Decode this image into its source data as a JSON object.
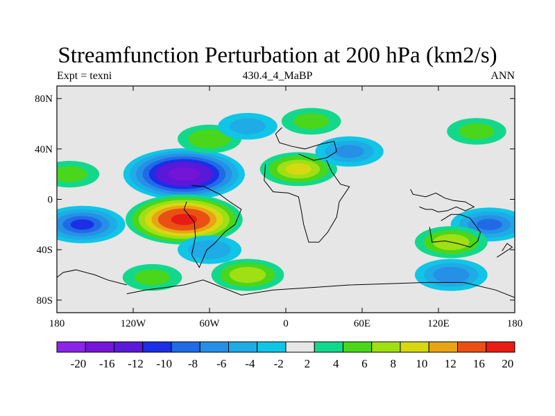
{
  "chart_data": {
    "type": "contour-map",
    "title": "Streamfunction Perturbation at 200 hPa (km2/s)",
    "left_label": "Expt = texni",
    "center_label": "430.4_4_MaBP",
    "right_label": "ANN",
    "x_ticks": [
      "180",
      "120W",
      "60W",
      "0",
      "60E",
      "120E",
      "180"
    ],
    "x_tick_values": [
      -180,
      -120,
      -60,
      0,
      60,
      120,
      180
    ],
    "y_ticks": [
      "80N",
      "40N",
      "0",
      "40S",
      "80S"
    ],
    "y_tick_values": [
      80,
      40,
      0,
      -40,
      -80
    ],
    "xlim": [
      -180,
      180
    ],
    "ylim": [
      -90,
      90
    ],
    "colorbar_labels": [
      "-20",
      "-16",
      "-12",
      "-10",
      "-8",
      "-6",
      "-4",
      "-2",
      "2",
      "4",
      "6",
      "8",
      "10",
      "12",
      "16",
      "20"
    ],
    "colorbar_colors": [
      "#8a25e8",
      "#7414d6",
      "#5a18d8",
      "#1c2ee6",
      "#1f6be6",
      "#2690e6",
      "#1fabe6",
      "#10c5e6",
      "#e6e6e6",
      "#13d88c",
      "#4ad61a",
      "#a0df14",
      "#d8d812",
      "#e8a414",
      "#ea5014",
      "#e81c14"
    ],
    "contour_centers": [
      {
        "lon": -80,
        "lat": 20,
        "value": -18
      },
      {
        "lon": -80,
        "lat": -16,
        "value": 17
      },
      {
        "lon": 10,
        "lat": 24,
        "value": 8
      },
      {
        "lon": -60,
        "lat": 48,
        "value": 5
      },
      {
        "lon": 20,
        "lat": 62,
        "value": 4
      },
      {
        "lon": -30,
        "lat": 58,
        "value": -4
      },
      {
        "lon": 50,
        "lat": 38,
        "value": -6
      },
      {
        "lon": 150,
        "lat": 54,
        "value": 4
      },
      {
        "lon": -170,
        "lat": 20,
        "value": 4
      },
      {
        "lon": -160,
        "lat": -20,
        "value": -10
      },
      {
        "lon": 160,
        "lat": -20,
        "value": -8
      },
      {
        "lon": 130,
        "lat": -34,
        "value": 7
      },
      {
        "lon": 130,
        "lat": -60,
        "value": -7
      },
      {
        "lon": -30,
        "lat": -60,
        "value": 7
      },
      {
        "lon": -105,
        "lat": -62,
        "value": 4
      },
      {
        "lon": -60,
        "lat": -40,
        "value": -5
      }
    ]
  }
}
